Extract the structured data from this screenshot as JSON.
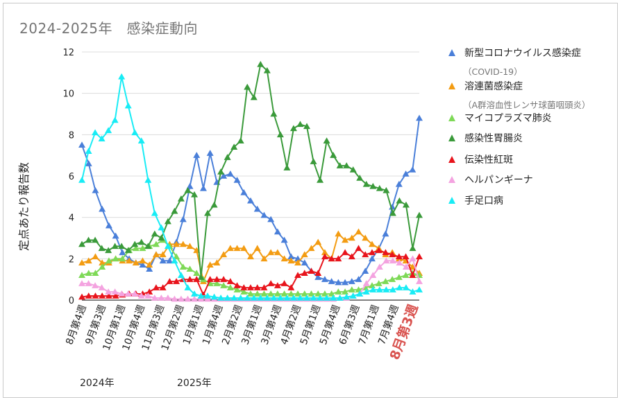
{
  "title": "2024-2025年　感染症動向",
  "ylabel": "定点あたり報告数",
  "year_labels": [
    "2024年",
    "2025年"
  ],
  "chart_data": {
    "type": "line",
    "title": "2024-2025年　感染症動向",
    "xlabel": "",
    "ylabel": "定点あたり報告数",
    "ylim": [
      0,
      12
    ],
    "yticks": [
      0,
      2,
      4,
      6,
      8,
      10,
      12
    ],
    "grid": "horizontal",
    "legend_position": "right",
    "x_tick_labels": [
      "8月第4週",
      "9月第3週",
      "10月第1週",
      "10月第4週",
      "11月第3週",
      "12月第2週",
      "1月第1週",
      "1月第4週",
      "2月第2週",
      "3月第1週",
      "3月第4週",
      "4月第2週",
      "5月第1週",
      "5月第4週",
      "6月第3週",
      "7月第1週",
      "7月第4週",
      "8月第3週"
    ],
    "highlight_tick": {
      "label": "8月第3週",
      "color": "#d9534f"
    },
    "series": [
      {
        "name": "新型コロナウイルス感染症",
        "sublabel": "（COVID-19）",
        "color": "#4a7fd9",
        "values": [
          7.5,
          6.6,
          5.3,
          4.4,
          3.6,
          3.1,
          2.3,
          2.0,
          1.8,
          1.7,
          1.5,
          2.2,
          1.9,
          1.9,
          2.8,
          3.9,
          5.5,
          7.0,
          5.4,
          7.1,
          5.7,
          6.0,
          6.1,
          5.8,
          5.2,
          4.8,
          4.4,
          4.1,
          3.9,
          3.3,
          2.9,
          2.1,
          2.0,
          1.8,
          1.4,
          1.1,
          1.0,
          0.9,
          0.85,
          0.85,
          0.9,
          1.0,
          1.4,
          2.0,
          2.5,
          3.2,
          4.5,
          5.6,
          6.1,
          6.3,
          8.8
        ]
      },
      {
        "name": "溶連菌感染症",
        "sublabel": "（A群溶血性レンサ球菌咽頭炎）",
        "color": "#f39c12",
        "values": [
          1.8,
          1.9,
          2.1,
          1.8,
          1.8,
          2.0,
          1.9,
          1.9,
          1.8,
          1.9,
          1.7,
          2.2,
          2.2,
          2.7,
          2.7,
          2.7,
          2.6,
          2.4,
          0.9,
          1.7,
          1.8,
          2.2,
          2.5,
          2.5,
          2.5,
          2.1,
          2.5,
          2.0,
          2.3,
          2.3,
          2.0,
          1.9,
          1.8,
          2.2,
          2.5,
          2.8,
          2.3,
          2.0,
          3.2,
          2.9,
          3.0,
          3.3,
          3.0,
          2.7,
          2.5,
          2.2,
          2.3,
          2.0,
          1.9,
          1.6,
          1.3
        ]
      },
      {
        "name": "マイコプラズマ肺炎",
        "sublabel": "",
        "color": "#7ed957",
        "values": [
          1.2,
          1.3,
          1.3,
          1.6,
          1.9,
          2.0,
          2.0,
          2.4,
          2.5,
          2.5,
          2.6,
          2.7,
          2.9,
          2.6,
          2.1,
          1.6,
          1.5,
          1.3,
          1.0,
          0.8,
          0.8,
          0.7,
          0.6,
          0.5,
          0.4,
          0.3,
          0.3,
          0.3,
          0.3,
          0.3,
          0.3,
          0.3,
          0.3,
          0.3,
          0.3,
          0.3,
          0.3,
          0.3,
          0.4,
          0.4,
          0.5,
          0.5,
          0.6,
          0.7,
          0.8,
          0.9,
          1.0,
          1.1,
          1.2,
          1.3,
          1.2
        ]
      },
      {
        "name": "感染性胃腸炎",
        "sublabel": "",
        "color": "#3a9a3a",
        "values": [
          2.7,
          2.9,
          2.9,
          2.5,
          2.4,
          2.6,
          2.6,
          2.4,
          2.7,
          2.8,
          2.6,
          3.2,
          3.0,
          3.8,
          4.3,
          4.9,
          5.3,
          5.1,
          1.1,
          4.2,
          4.6,
          6.2,
          6.9,
          7.4,
          7.7,
          10.3,
          9.8,
          11.4,
          11.1,
          9.0,
          8.0,
          6.4,
          8.3,
          8.5,
          8.4,
          6.7,
          5.8,
          7.7,
          7.0,
          6.5,
          6.5,
          6.3,
          5.9,
          5.6,
          5.5,
          5.4,
          5.3,
          4.2,
          4.8,
          4.6,
          2.5,
          4.1
        ]
      },
      {
        "name": "伝染性紅斑",
        "sublabel": "",
        "color": "#e8141c",
        "values": [
          0.15,
          0.2,
          0.2,
          0.2,
          0.2,
          0.2,
          0.25,
          0.3,
          0.3,
          0.3,
          0.4,
          0.6,
          0.6,
          0.9,
          0.9,
          1.0,
          1.0,
          1.0,
          0.25,
          1.0,
          1.0,
          1.0,
          0.9,
          0.7,
          0.6,
          0.6,
          0.6,
          0.6,
          0.8,
          0.7,
          0.8,
          0.6,
          1.2,
          1.3,
          1.4,
          1.3,
          2.1,
          2.0,
          2.0,
          2.3,
          2.1,
          2.5,
          2.2,
          2.3,
          2.4,
          2.3,
          2.2,
          2.1,
          2.1,
          1.2,
          2.1
        ]
      },
      {
        "name": "ヘルパンギーナ",
        "sublabel": "",
        "color": "#f4a3e0",
        "values": [
          0.8,
          0.8,
          0.7,
          0.6,
          0.4,
          0.4,
          0.3,
          0.3,
          0.3,
          0.2,
          0.2,
          0.1,
          0.1,
          0.1,
          0.05,
          0.05,
          0.05,
          0.05,
          0.05,
          0.05,
          0.05,
          0.05,
          0.05,
          0.05,
          0.05,
          0.05,
          0.05,
          0.05,
          0.05,
          0.05,
          0.05,
          0.05,
          0.05,
          0.05,
          0.05,
          0.05,
          0.05,
          0.05,
          0.05,
          0.1,
          0.1,
          0.2,
          0.3,
          0.8,
          1.2,
          1.6,
          1.9,
          1.9,
          1.8,
          1.6,
          2.0,
          0.9
        ]
      },
      {
        "name": "手足口病",
        "sublabel": "",
        "color": "#18ecf5",
        "values": [
          5.8,
          7.2,
          8.1,
          7.8,
          8.2,
          8.7,
          10.8,
          9.4,
          8.1,
          7.7,
          5.8,
          4.2,
          3.5,
          2.6,
          1.9,
          1.2,
          0.6,
          0.3,
          0.2,
          0.2,
          0.15,
          0.1,
          0.1,
          0.1,
          0.1,
          0.1,
          0.1,
          0.1,
          0.1,
          0.1,
          0.1,
          0.1,
          0.1,
          0.1,
          0.1,
          0.1,
          0.1,
          0.1,
          0.1,
          0.1,
          0.15,
          0.2,
          0.3,
          0.4,
          0.5,
          0.5,
          0.5,
          0.5,
          0.6,
          0.6,
          0.4,
          0.5
        ]
      }
    ]
  }
}
